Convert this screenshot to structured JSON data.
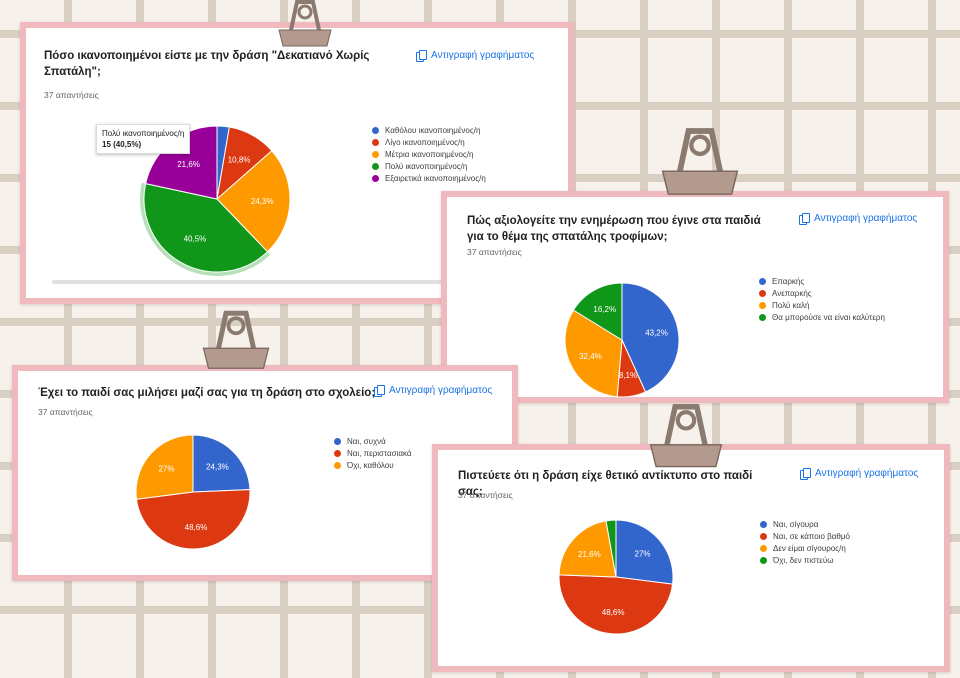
{
  "copy_label": "Αντιγραφή γραφήματος",
  "colors": [
    "#3366cc",
    "#dc3912",
    "#ff9900",
    "#109618",
    "#990099"
  ],
  "chart_data": [
    {
      "type": "pie",
      "title": "Πόσο ικανοποιημένοι είστε με την δράση \"Δεκατιανό Χωρίς Σπατάλη\";",
      "responses": "37 απαντήσεις",
      "categories": [
        "Καθόλου ικανοποιημένος/η",
        "Λίγο ικανοποιημένος/η",
        "Μέτρια ικανοποιημένος/η",
        "Πολύ ικανοποιημένος/η",
        "Εξαιρετικά ικανοποιημένος/η"
      ],
      "values": [
        2.7,
        10.8,
        24.3,
        40.5,
        21.6
      ],
      "data_labels": [
        "",
        "10,8%",
        "24,3%",
        "40,5%",
        "21,6%"
      ],
      "tooltip": {
        "label": "Πολύ ικανοποιημένος/η",
        "value": "15 (40,5%)"
      },
      "highlighted": 3
    },
    {
      "type": "pie",
      "title": "Πώς αξιολογείτε την ενημέρωση που έγινε στα παιδιά για το θέμα της σπατάλης τροφίμων;",
      "responses": "37 απαντήσεις",
      "categories": [
        "Επαρκής",
        "Ανεπαρκής",
        "Πολύ καλή",
        "Θα μπορούσε να είναι καλύτερη"
      ],
      "values": [
        43.2,
        8.1,
        32.4,
        16.2
      ],
      "data_labels": [
        "43,2%",
        "8,1%",
        "32,4%",
        "16,2%"
      ]
    },
    {
      "type": "pie",
      "title": "Έχει το παιδί σας μιλήσει μαζί σας για τη δράση στο σχολείο;",
      "responses": "37 απαντήσεις",
      "categories": [
        "Ναι, συχνά",
        "Ναι, περιστασιακά",
        "Όχι, καθόλου"
      ],
      "values": [
        24.3,
        48.6,
        27
      ],
      "data_labels": [
        "24,3%",
        "48,6%",
        "27%"
      ]
    },
    {
      "type": "pie",
      "title": "Πιστεύετε ότι η δράση είχε θετικό αντίκτυπο στο παιδί σας;",
      "responses": "37 απαντήσεις",
      "categories": [
        "Ναι, σίγουρα",
        "Ναι, σε κάποιο βαθμό",
        "Δεν είμαι σίγουρος/η",
        "Όχι, δεν πιστεύω"
      ],
      "values": [
        27,
        48.6,
        21.6,
        2.8
      ],
      "data_labels": [
        "27%",
        "48,6%",
        "21,6%",
        ""
      ]
    }
  ]
}
